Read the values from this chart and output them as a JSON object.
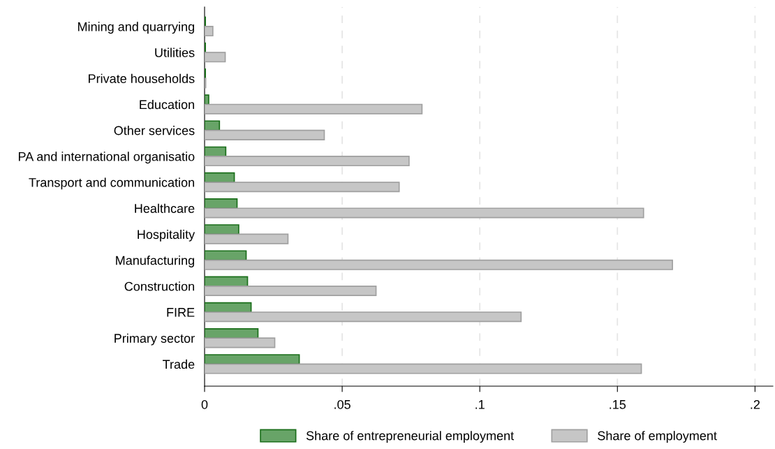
{
  "chart_data": {
    "type": "bar",
    "orientation": "horizontal",
    "categories": [
      "Mining and quarrying",
      "Utilities",
      "Private households",
      "Education",
      "Other services",
      "PA and international organisatio",
      "Transport and communication",
      "Healthcare",
      "Hospitality",
      "Manufacturing",
      "Construction",
      "FIRE",
      "Primary sector",
      "Trade"
    ],
    "series": [
      {
        "name": "Share of entrepreneurial employment",
        "color": "#68a468",
        "values": [
          0.0003,
          0.0003,
          0.0003,
          0.0015,
          0.0054,
          0.0077,
          0.0108,
          0.0118,
          0.0124,
          0.0151,
          0.0156,
          0.0169,
          0.0194,
          0.0344
        ]
      },
      {
        "name": "Share of employment",
        "color": "#c6c6c6",
        "values": [
          0.003,
          0.0075,
          0.0004,
          0.079,
          0.0435,
          0.0743,
          0.0707,
          0.1595,
          0.0303,
          0.17,
          0.0623,
          0.115,
          0.0255,
          0.1587
        ]
      }
    ],
    "xlim": [
      0,
      0.2065
    ],
    "xticks": [
      {
        "value": 0,
        "label": "0"
      },
      {
        "value": 0.05,
        "label": ".05"
      },
      {
        "value": 0.1,
        "label": ".1"
      },
      {
        "value": 0.15,
        "label": ".15"
      },
      {
        "value": 0.2,
        "label": ".2"
      }
    ],
    "grid": "x",
    "legend": "bottom"
  }
}
